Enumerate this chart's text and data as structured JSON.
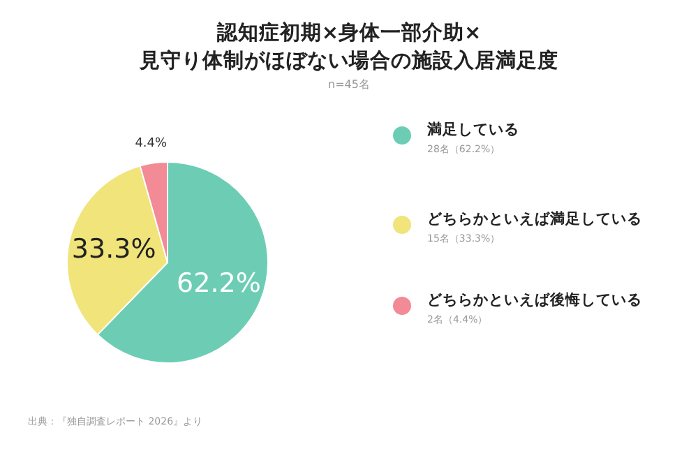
{
  "chart_data": {
    "type": "pie",
    "title": "認知症初期×身体一部介助×\n見守り体制がほぼない場合の施設入居満足度",
    "subtitle": "n=45名",
    "categories": [
      "満足している",
      "どちらかといえば満足している",
      "どちらかといえば後悔している"
    ],
    "values": [
      62.2,
      33.3,
      4.4
    ],
    "colors": [
      "#6ccdb4",
      "#f0e47a",
      "#f28b95"
    ],
    "value_labels": [
      "62.2%",
      "33.3%",
      "4.4%"
    ],
    "legend": "right",
    "annotations": [
      "28名（62.2%）",
      "15名（33.3%）",
      "2名（4.4%）",
      "出典：『独自調査レポート 2026』より"
    ]
  }
}
